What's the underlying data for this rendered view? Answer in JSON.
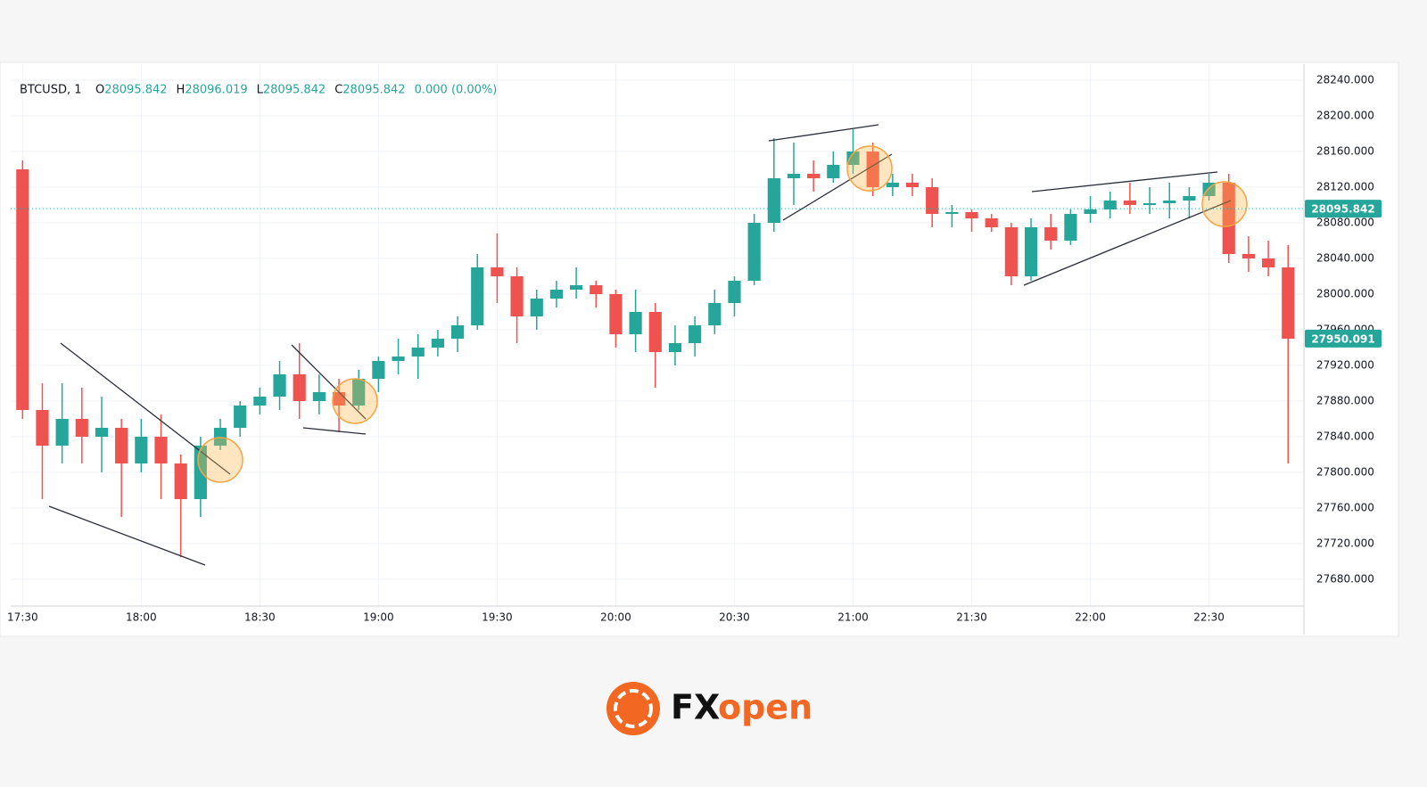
{
  "chart_data": {
    "type": "candlestick",
    "header": {
      "symbol": "BTCUSD, 1",
      "items": [
        {
          "label": "O",
          "value": "28095.842"
        },
        {
          "label": "H",
          "value": "28096.019"
        },
        {
          "label": "L",
          "value": "28095.842"
        },
        {
          "label": "C",
          "value": "28095.842"
        }
      ],
      "change": "0.000 (0.00%)"
    },
    "up_color": "#26a69a",
    "down_color": "#ef5350",
    "x": [
      "17:30",
      "17:35",
      "17:40",
      "17:45",
      "17:50",
      "17:55",
      "18:00",
      "18:05",
      "18:10",
      "18:15",
      "18:20",
      "18:25",
      "18:30",
      "18:35",
      "18:40",
      "18:45",
      "18:50",
      "18:55",
      "19:00",
      "19:05",
      "19:10",
      "19:15",
      "19:20",
      "19:25",
      "19:30",
      "19:35",
      "19:40",
      "19:45",
      "19:50",
      "19:55",
      "20:00",
      "20:05",
      "20:10",
      "20:15",
      "20:20",
      "20:25",
      "20:30",
      "20:35",
      "20:40",
      "20:45",
      "20:50",
      "20:55",
      "21:00",
      "21:05",
      "21:10",
      "21:15",
      "21:20",
      "21:25",
      "21:30",
      "21:35",
      "21:40",
      "21:45",
      "21:50",
      "21:55",
      "22:00",
      "22:05",
      "22:10",
      "22:15",
      "22:20",
      "22:25",
      "22:30",
      "22:35",
      "22:40",
      "22:45",
      "22:50"
    ],
    "open": [
      28140,
      27870,
      27830,
      27860,
      27840,
      27850,
      27810,
      27840,
      27810,
      27770,
      27830,
      27850,
      27875,
      27885,
      27910,
      27880,
      27890,
      27875,
      27905,
      27925,
      27930,
      27940,
      27950,
      27965,
      28030,
      28020,
      27975,
      27995,
      28005,
      28010,
      28000,
      27955,
      27980,
      27935,
      27945,
      27965,
      27990,
      28015,
      28080,
      28130,
      28135,
      28130,
      28145,
      28160,
      28120,
      28125,
      28120,
      28090,
      28092,
      28085,
      28075,
      28020,
      28075,
      28060,
      28090,
      28095,
      28105,
      28100,
      28102,
      28105,
      28110,
      28125,
      28045,
      28040,
      28030
    ],
    "high": [
      28150,
      27900,
      27900,
      27895,
      27885,
      27860,
      27860,
      27865,
      27820,
      27840,
      27860,
      27880,
      27895,
      27925,
      27945,
      27910,
      27905,
      27915,
      27930,
      27950,
      27955,
      27960,
      27975,
      28045,
      28068,
      28030,
      28005,
      28015,
      28030,
      28015,
      28005,
      28005,
      27990,
      27965,
      27975,
      28005,
      28020,
      28090,
      28175,
      28170,
      28150,
      28160,
      28185,
      28170,
      28135,
      28135,
      28130,
      28100,
      28095,
      28090,
      28080,
      28085,
      28090,
      28095,
      28110,
      28115,
      28125,
      28120,
      28125,
      28120,
      28135,
      28135,
      28065,
      28060,
      28055
    ],
    "low": [
      27860,
      27770,
      27810,
      27810,
      27800,
      27750,
      27800,
      27770,
      27705,
      27750,
      27825,
      27840,
      27865,
      27870,
      27860,
      27865,
      27845,
      27870,
      27890,
      27910,
      27905,
      27930,
      27935,
      27960,
      27990,
      27945,
      27960,
      27985,
      27995,
      27985,
      27940,
      27935,
      27895,
      27920,
      27930,
      27955,
      27975,
      28010,
      28070,
      28100,
      28115,
      28125,
      28135,
      28110,
      28110,
      28110,
      28075,
      28075,
      28070,
      28070,
      28010,
      28015,
      28050,
      28055,
      28080,
      28085,
      28090,
      28090,
      28085,
      28085,
      28105,
      28035,
      28025,
      28020,
      27810
    ],
    "close": [
      27870,
      27830,
      27860,
      27840,
      27850,
      27810,
      27840,
      27810,
      27770,
      27830,
      27850,
      27875,
      27885,
      27910,
      27880,
      27890,
      27875,
      27905,
      27925,
      27930,
      27940,
      27950,
      27965,
      28030,
      28020,
      27975,
      27995,
      28005,
      28010,
      28000,
      27955,
      27980,
      27935,
      27945,
      27965,
      27990,
      28015,
      28080,
      28130,
      28135,
      28130,
      28145,
      28160,
      28120,
      28125,
      28120,
      28090,
      28092,
      28085,
      28075,
      28020,
      28075,
      28060,
      28090,
      28095,
      28105,
      28100,
      28102,
      28105,
      28110,
      28125,
      28045,
      28040,
      28030,
      27950
    ],
    "xlim": [
      "17:27",
      "22:54"
    ],
    "xticks": [
      "17:30",
      "18:00",
      "18:30",
      "19:00",
      "19:30",
      "20:00",
      "20:30",
      "21:00",
      "21:30",
      "22:00",
      "22:30"
    ],
    "ylim": [
      27650,
      28258
    ],
    "yticks": [
      {
        "value": 28240,
        "label": "28240.000"
      },
      {
        "value": 28200,
        "label": "28200.000"
      },
      {
        "value": 28160,
        "label": "28160.000"
      },
      {
        "value": 28120,
        "label": "28120.000"
      },
      {
        "value": 28080,
        "label": "28080.000"
      },
      {
        "value": 28040,
        "label": "28040.000"
      },
      {
        "value": 28000,
        "label": "28000.000"
      },
      {
        "value": 27960,
        "label": "27960.000"
      },
      {
        "value": 27920,
        "label": "27920.000"
      },
      {
        "value": 27880,
        "label": "27880.000"
      },
      {
        "value": 27840,
        "label": "27840.000"
      },
      {
        "value": 27800,
        "label": "27800.000"
      },
      {
        "value": 27760,
        "label": "27760.000"
      },
      {
        "value": 27720,
        "label": "27720.000"
      },
      {
        "value": 27680,
        "label": "27680.000"
      }
    ],
    "grid": true,
    "price_marks": [
      {
        "value": 28095.842,
        "label": "28095.842",
        "color": "#26a69a",
        "dotted": true
      },
      {
        "value": 27950.091,
        "label": "27950.091",
        "color": "#26a69a",
        "dotted": false
      }
    ]
  },
  "logo": {
    "part_1": "FX",
    "part_2": "open"
  }
}
